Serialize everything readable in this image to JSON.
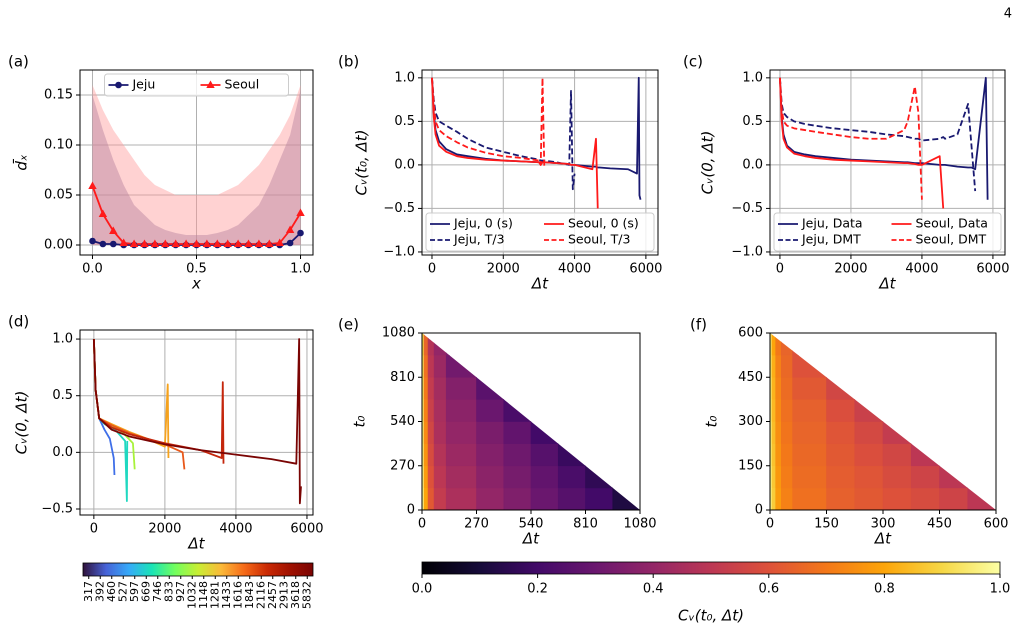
{
  "page_number": "4",
  "chart_data": [
    {
      "type": "line",
      "panel": "(a)",
      "xlabel": "x",
      "ylabel": "d̄ₓ",
      "x": [
        0,
        0.05,
        0.1,
        0.15,
        0.2,
        0.25,
        0.3,
        0.35,
        0.4,
        0.45,
        0.5,
        0.55,
        0.6,
        0.65,
        0.7,
        0.75,
        0.8,
        0.85,
        0.9,
        0.95,
        1
      ],
      "series": [
        {
          "name": "Jeju",
          "color": "#191970",
          "marker": "circle",
          "band_color": "#7a6aa0",
          "values": [
            0.004,
            0.001,
            0.001,
            0,
            0,
            0,
            0,
            0,
            0,
            0,
            0,
            0,
            0,
            0,
            0,
            0,
            0,
            0,
            0,
            0.002,
            0.012
          ],
          "band_upper": [
            0.15,
            0.115,
            0.085,
            0.06,
            0.04,
            0.03,
            0.02,
            0.015,
            0.012,
            0.01,
            0.01,
            0.01,
            0.012,
            0.015,
            0.02,
            0.03,
            0.04,
            0.06,
            0.085,
            0.11,
            0.155
          ]
        },
        {
          "name": "Seoul",
          "color": "#ff1a1a",
          "marker": "triangle",
          "band_color": "#ff9c9c",
          "values": [
            0.059,
            0.031,
            0.014,
            0.002,
            0.001,
            0.001,
            0.001,
            0.001,
            0.001,
            0.001,
            0.001,
            0.001,
            0.001,
            0.001,
            0.001,
            0.001,
            0.001,
            0.001,
            0.002,
            0.015,
            0.032
          ],
          "band_upper": [
            0.16,
            0.135,
            0.115,
            0.1,
            0.085,
            0.07,
            0.06,
            0.055,
            0.05,
            0.05,
            0.05,
            0.05,
            0.05,
            0.055,
            0.06,
            0.07,
            0.08,
            0.095,
            0.11,
            0.13,
            0.16
          ]
        }
      ],
      "xlim": [
        -0.06,
        1.06
      ],
      "ylim": [
        -0.01,
        0.175
      ],
      "xticks": [
        {
          "value": 0,
          "label": "0.0"
        },
        0.5,
        {
          "value": 1,
          "label": "1.0"
        }
      ],
      "yticks": [
        {
          "value": 0,
          "label": "0.00"
        },
        0.05,
        {
          "value": 0.1,
          "label": "0.10"
        },
        0.15
      ],
      "grid": true,
      "legend": "upper center",
      "legend_columns": 2
    },
    {
      "type": "line",
      "panel": "(b)",
      "xlabel": "Δt",
      "ylabel": "Cᵥ(t₀, Δt)",
      "x": [
        0,
        50,
        100,
        200,
        400,
        700,
        1000,
        1500,
        2000,
        2500,
        3000,
        3050,
        3100,
        3150,
        3500,
        3850,
        3900,
        3950,
        4000,
        4500,
        4600,
        4650,
        4700,
        5000,
        5500,
        5750,
        5800,
        5820,
        5850
      ],
      "series": [
        {
          "name": "Jeju, 0 (s)",
          "color": "#191970",
          "dash": false,
          "values": [
            1.0,
            0.6,
            0.4,
            0.27,
            0.18,
            0.12,
            0.1,
            0.07,
            0.05,
            0.04,
            0.03,
            0.03,
            0.03,
            0.03,
            0.02,
            0.01,
            0,
            0,
            0,
            -0.02,
            -0.02,
            -0.03,
            -0.03,
            -0.04,
            -0.05,
            -0.1,
            1.0,
            -0.35,
            -0.4
          ]
        },
        {
          "name": "Jeju, T/3",
          "color": "#191970",
          "dash": true,
          "values": [
            1.0,
            0.75,
            0.6,
            0.5,
            0.45,
            0.38,
            0.3,
            0.2,
            0.15,
            0.1,
            0.06,
            0.05,
            0.05,
            0.05,
            0.03,
            0,
            0.85,
            -0.28,
            -0.1,
            null,
            null,
            null,
            null,
            null,
            null,
            null,
            null,
            null,
            null
          ]
        },
        {
          "name": "Seoul, 0 (s)",
          "color": "#ff1a1a",
          "dash": false,
          "values": [
            1.0,
            0.55,
            0.35,
            0.22,
            0.15,
            0.1,
            0.08,
            0.06,
            0.05,
            0.04,
            0.03,
            0,
            0.03,
            0.03,
            0.02,
            0.01,
            0,
            0,
            0,
            -0.05,
            0.3,
            -0.5,
            null,
            null,
            null,
            null,
            null,
            null,
            null
          ]
        },
        {
          "name": "Seoul, T/3",
          "color": "#ff1a1a",
          "dash": true,
          "values": [
            1.0,
            0.7,
            0.5,
            0.4,
            0.33,
            0.26,
            0.2,
            0.14,
            0.1,
            0.08,
            0.05,
            0,
            1.0,
            -0.02,
            null,
            null,
            null,
            null,
            null,
            null,
            null,
            null,
            null,
            null,
            null,
            null,
            null,
            null,
            null
          ]
        }
      ],
      "xlim": [
        -280,
        6340
      ],
      "ylim": [
        -1.035,
        1.09
      ],
      "xticks": [
        0,
        2000,
        4000,
        6000
      ],
      "yticks": [
        {
          "value": -1,
          "label": "−1.0"
        },
        {
          "value": -0.5,
          "label": "−0.5"
        },
        {
          "value": 0,
          "label": "0.0"
        },
        0.5,
        {
          "value": 1,
          "label": "1.0"
        }
      ],
      "grid": true,
      "legend": "lower left",
      "legend_columns": 2
    },
    {
      "type": "line",
      "panel": "(c)",
      "xlabel": "Δt",
      "ylabel": "Cᵥ(0, Δt)",
      "x": [
        0,
        50,
        100,
        200,
        400,
        700,
        1000,
        1500,
        2000,
        2500,
        3000,
        3500,
        3600,
        3800,
        3900,
        4000,
        4500,
        4600,
        4650,
        5000,
        5300,
        5400,
        5500,
        5800,
        5850
      ],
      "series": [
        {
          "name": "Jeju, Data",
          "color": "#191970",
          "dash": false,
          "values": [
            1.0,
            0.55,
            0.35,
            0.22,
            0.15,
            0.12,
            0.1,
            0.08,
            0.06,
            0.05,
            0.04,
            0.03,
            0.03,
            0.02,
            0.02,
            0.02,
            0,
            0,
            0,
            -0.02,
            -0.03,
            -0.03,
            -0.05,
            1.0,
            -0.4
          ]
        },
        {
          "name": "Jeju, DMT",
          "color": "#191970",
          "dash": true,
          "values": [
            1.0,
            0.7,
            0.6,
            0.55,
            0.5,
            0.47,
            0.45,
            0.42,
            0.4,
            0.38,
            0.35,
            0.33,
            0.32,
            0.3,
            0.3,
            0.28,
            0.3,
            0.32,
            0.3,
            0.35,
            0.7,
            0.2,
            -0.3,
            null,
            null
          ]
        },
        {
          "name": "Seoul, Data",
          "color": "#ff1a1a",
          "dash": false,
          "values": [
            1.0,
            0.5,
            0.3,
            0.2,
            0.13,
            0.1,
            0.08,
            0.06,
            0.05,
            0.04,
            0.03,
            0.02,
            0.02,
            0.01,
            0,
            0,
            0.1,
            -0.5,
            null,
            null,
            null,
            null,
            null,
            null,
            null
          ]
        },
        {
          "name": "Seoul, DMT",
          "color": "#ff1a1a",
          "dash": true,
          "values": [
            1.0,
            0.65,
            0.5,
            0.45,
            0.42,
            0.4,
            0.38,
            0.35,
            0.32,
            0.3,
            0.3,
            0.4,
            0.5,
            0.9,
            0.6,
            -0.4,
            null,
            null,
            null,
            null,
            null,
            null,
            null,
            null,
            null
          ]
        }
      ],
      "xlim": [
        -280,
        6340
      ],
      "ylim": [
        -1.035,
        1.09
      ],
      "xticks": [
        0,
        2000,
        4000,
        6000
      ],
      "yticks": [
        {
          "value": -1,
          "label": "−1.0"
        },
        {
          "value": -0.5,
          "label": "−0.5"
        },
        {
          "value": 0,
          "label": "0.0"
        },
        0.5,
        {
          "value": 1,
          "label": "1.0"
        }
      ],
      "grid": true,
      "legend": "lower left",
      "legend_columns": 2
    },
    {
      "type": "line",
      "panel": "(d)",
      "xlabel": "Δt",
      "ylabel": "Cᵥ(0, Δt)",
      "series": [
        {
          "color": "#3f6fe8",
          "x": [
            0,
            50,
            150,
            300,
            450,
            560,
            580
          ],
          "values": [
            1.0,
            0.55,
            0.3,
            0.2,
            0.12,
            -0.05,
            -0.2
          ]
        },
        {
          "color": "#1fd8c0",
          "x": [
            0,
            50,
            150,
            300,
            600,
            880,
            930,
            940
          ],
          "values": [
            1.0,
            0.55,
            0.3,
            0.25,
            0.2,
            0.1,
            -0.43,
            0.1
          ]
        },
        {
          "color": "#a8f23a",
          "x": [
            0,
            50,
            150,
            400,
            800,
            1100,
            1150
          ],
          "values": [
            1.0,
            0.55,
            0.3,
            0.25,
            0.18,
            0.08,
            -0.15
          ]
        },
        {
          "color": "#f5a21d",
          "x": [
            0,
            50,
            150,
            500,
            1000,
            1500,
            2000,
            2080,
            2100
          ],
          "values": [
            1.0,
            0.55,
            0.3,
            0.25,
            0.18,
            0.12,
            0.05,
            0.6,
            -0.05
          ]
        },
        {
          "color": "#e8581a",
          "x": [
            0,
            50,
            150,
            500,
            1000,
            1500,
            2000,
            2500,
            2550
          ],
          "values": [
            1.0,
            0.55,
            0.3,
            0.24,
            0.17,
            0.12,
            0.07,
            0,
            -0.15
          ]
        },
        {
          "color": "#c4260c",
          "x": [
            0,
            50,
            150,
            500,
            1000,
            2000,
            3000,
            3600,
            3630,
            3650
          ],
          "values": [
            1.0,
            0.55,
            0.3,
            0.22,
            0.16,
            0.08,
            0.02,
            -0.05,
            0.62,
            -0.1
          ]
        },
        {
          "color": "#7a0403",
          "x": [
            0,
            50,
            150,
            500,
            1000,
            2000,
            3000,
            4000,
            5000,
            5700,
            5780,
            5800,
            5832
          ],
          "values": [
            1.0,
            0.55,
            0.3,
            0.2,
            0.14,
            0.07,
            0.02,
            -0.02,
            -0.06,
            -0.1,
            1.0,
            -0.45,
            -0.3
          ]
        }
      ],
      "xlim": [
        -390,
        6170
      ],
      "ylim": [
        -0.553,
        1.08
      ],
      "xticks": [
        0,
        2000,
        4000,
        6000
      ],
      "yticks": [
        {
          "value": -0.5,
          "label": "−0.5"
        },
        {
          "value": 0,
          "label": "0.0"
        },
        0.5,
        {
          "value": 1,
          "label": "1.0"
        }
      ],
      "grid": true,
      "colorbar": {
        "colormap": "turbo",
        "ticks": [
          317,
          392,
          460,
          527,
          597,
          669,
          746,
          833,
          927,
          1032,
          1148,
          1281,
          1433,
          1616,
          1843,
          2116,
          2457,
          2913,
          3618,
          5832
        ]
      }
    },
    {
      "type": "heatmap",
      "panel": "(e)",
      "xlabel": "Δt",
      "ylabel": "t₀",
      "x_edges": [
        0,
        10,
        30,
        60,
        120,
        270,
        405,
        540,
        675,
        810,
        945,
        1080
      ],
      "y_edges": [
        0,
        135,
        270,
        405,
        540,
        675,
        810,
        945,
        1080
      ],
      "z": [
        [
          0.98,
          0.8,
          0.62,
          0.52,
          0.46,
          0.4,
          0.35,
          0.3,
          0.25,
          0.2,
          0.12
        ],
        [
          0.97,
          0.78,
          0.6,
          0.5,
          0.44,
          0.38,
          0.33,
          0.28,
          0.22,
          0.16,
          null
        ],
        [
          0.96,
          0.76,
          0.58,
          0.48,
          0.42,
          0.36,
          0.31,
          0.25,
          0.18,
          null,
          null
        ],
        [
          0.95,
          0.74,
          0.56,
          0.46,
          0.4,
          0.34,
          0.28,
          0.2,
          null,
          null,
          null
        ],
        [
          0.94,
          0.72,
          0.54,
          0.45,
          0.38,
          0.3,
          0.22,
          null,
          null,
          null,
          null
        ],
        [
          0.93,
          0.7,
          0.52,
          0.44,
          0.36,
          0.26,
          null,
          null,
          null,
          null,
          null
        ],
        [
          0.92,
          0.68,
          0.5,
          0.42,
          0.32,
          null,
          null,
          null,
          null,
          null,
          null
        ],
        [
          0.9,
          0.65,
          0.48,
          0.4,
          0.35,
          null,
          null,
          null,
          null,
          null,
          null
        ]
      ],
      "xlim": [
        0,
        1080
      ],
      "ylim": [
        0,
        1080
      ],
      "xticks": [
        0,
        270,
        540,
        810,
        1080
      ],
      "yticks": [
        0,
        270,
        540,
        810,
        1080
      ],
      "grid": false
    },
    {
      "type": "heatmap",
      "panel": "(f)",
      "xlabel": "Δt",
      "ylabel": "t₀",
      "x_edges": [
        0,
        5,
        15,
        30,
        60,
        150,
        225,
        300,
        375,
        450,
        525,
        600
      ],
      "y_edges": [
        0,
        75,
        150,
        225,
        300,
        375,
        450,
        525,
        600
      ],
      "z": [
        [
          0.98,
          0.88,
          0.78,
          0.72,
          0.68,
          0.64,
          0.62,
          0.6,
          0.58,
          0.55,
          0.5
        ],
        [
          0.98,
          0.87,
          0.77,
          0.71,
          0.67,
          0.63,
          0.61,
          0.58,
          0.55,
          0.5,
          null
        ],
        [
          0.97,
          0.86,
          0.76,
          0.7,
          0.66,
          0.62,
          0.59,
          0.56,
          0.5,
          null,
          null
        ],
        [
          0.97,
          0.85,
          0.75,
          0.69,
          0.65,
          0.61,
          0.57,
          0.52,
          null,
          null,
          null
        ],
        [
          0.96,
          0.84,
          0.74,
          0.68,
          0.64,
          0.59,
          0.54,
          null,
          null,
          null,
          null
        ],
        [
          0.96,
          0.83,
          0.73,
          0.67,
          0.62,
          0.56,
          null,
          null,
          null,
          null,
          null
        ],
        [
          0.95,
          0.82,
          0.72,
          0.66,
          0.6,
          null,
          null,
          null,
          null,
          null,
          null
        ],
        [
          0.95,
          0.8,
          0.7,
          0.65,
          0.6,
          null,
          null,
          null,
          null,
          null,
          null
        ]
      ],
      "xlim": [
        0,
        600
      ],
      "ylim": [
        0,
        600
      ],
      "xticks": [
        0,
        150,
        300,
        450,
        600
      ],
      "yticks": [
        0,
        150,
        300,
        450,
        600
      ],
      "grid": false
    }
  ],
  "colorbar": {
    "label": "Cᵥ(t₀, Δt)",
    "colormap": "inferno",
    "lim": [
      0,
      1
    ],
    "ticks": [
      {
        "value": 0,
        "label": "0.0"
      },
      0.2,
      0.4,
      0.6,
      0.8,
      {
        "value": 1,
        "label": "1.0"
      }
    ]
  }
}
